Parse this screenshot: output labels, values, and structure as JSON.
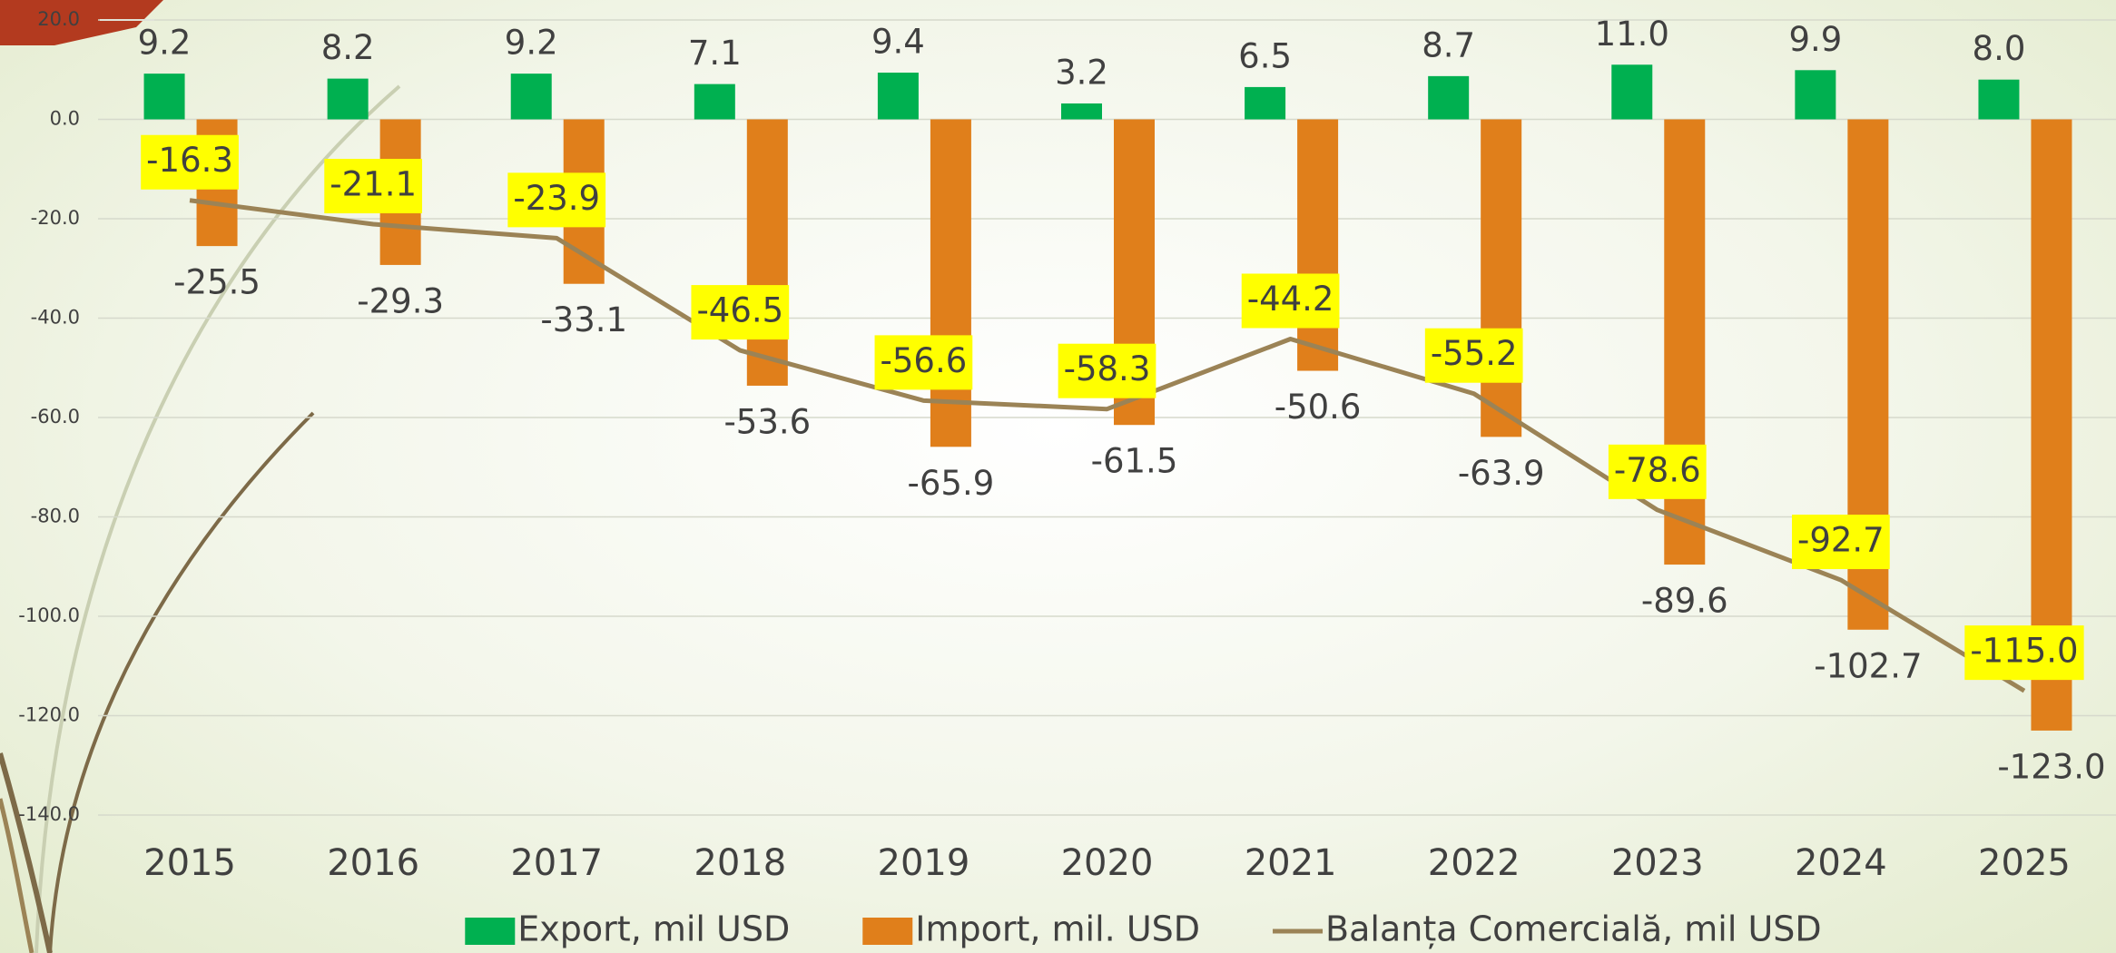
{
  "chart_data": {
    "type": "combo",
    "categories": [
      "2015",
      "2016",
      "2017",
      "2018",
      "2019",
      "2020",
      "2021",
      "2022",
      "2023",
      "2024",
      "2025"
    ],
    "series": [
      {
        "name": "Export, mil USD",
        "type": "bar",
        "color": "#00b050",
        "values": [
          9.2,
          8.2,
          9.2,
          7.1,
          9.4,
          3.2,
          6.5,
          8.7,
          11.0,
          9.9,
          8.0
        ],
        "value_labels": [
          "9.2",
          "8.2",
          "9.2",
          "7.1",
          "9.4",
          "3.2",
          "6.5",
          "8.7",
          "11.0",
          "9.9",
          "8.0"
        ]
      },
      {
        "name": "Import, mil. USD",
        "type": "bar",
        "color": "#e07f1b",
        "values": [
          -25.5,
          -29.3,
          -33.1,
          -53.6,
          -65.9,
          -61.5,
          -50.6,
          -63.9,
          -89.6,
          -102.7,
          -123.0
        ],
        "value_labels": [
          "-25.5",
          "-29.3",
          "-33.1",
          "-53.6",
          "-65.9",
          "-61.5",
          "-50.6",
          "-63.9",
          "-89.6",
          "-102.7",
          "-123.0"
        ]
      },
      {
        "name": "Balanța Comercială, mil USD",
        "type": "line",
        "color": "#9b8356",
        "values": [
          -16.3,
          -21.1,
          -23.9,
          -46.5,
          -56.6,
          -58.3,
          -44.2,
          -55.2,
          -78.6,
          -92.7,
          -115.0
        ],
        "value_labels": [
          "-16.3",
          "-21.1",
          "-23.9",
          "-46.5",
          "-56.6",
          "-58.3",
          "-44.2",
          "-55.2",
          "-78.6",
          "-92.7",
          "-115.0"
        ],
        "label_color": "#ffff00"
      }
    ],
    "ylim": [
      -140,
      20
    ],
    "yticks": [
      {
        "value": 20,
        "label": "20.0"
      },
      {
        "value": 0,
        "label": "0.0"
      },
      {
        "value": -20,
        "label": "-20.0"
      },
      {
        "value": -40,
        "label": "-40.0"
      },
      {
        "value": -60,
        "label": "-60.0"
      },
      {
        "value": -80,
        "label": "-80.0"
      },
      {
        "value": -100,
        "label": "-100.0"
      },
      {
        "value": -120,
        "label": "-120.0"
      },
      {
        "value": -140,
        "label": "-140.0"
      }
    ],
    "grid": true,
    "legend": "bottom"
  }
}
